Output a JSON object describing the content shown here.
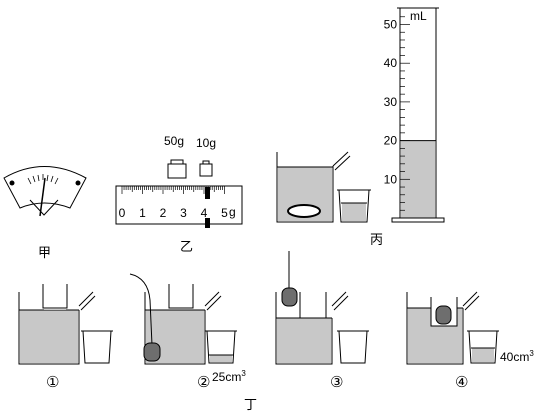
{
  "labels": {
    "jia": "甲",
    "yi": "乙",
    "bing": "丙",
    "ding": "丁"
  },
  "weights": {
    "w50": "50g",
    "w10": "10g"
  },
  "rule": {
    "ticks": [
      "0",
      "1",
      "2",
      "3",
      "4",
      "5"
    ],
    "unit": "g",
    "rider_value": 4.0
  },
  "cylinder": {
    "unit": "mL",
    "ticks": [
      "50",
      "40",
      "30",
      "20",
      "10"
    ],
    "liquid_ml": 20
  },
  "steps": {
    "s1": "①",
    "s2": "②",
    "s3": "③",
    "s4": "④"
  },
  "volumes": {
    "v2": "25cm",
    "v2_sup": "3",
    "v4": "40cm",
    "v4_sup": "3"
  },
  "colors": {
    "liquid": "#c8c8c8",
    "stone": "#6e6e6e",
    "line": "#000000"
  }
}
